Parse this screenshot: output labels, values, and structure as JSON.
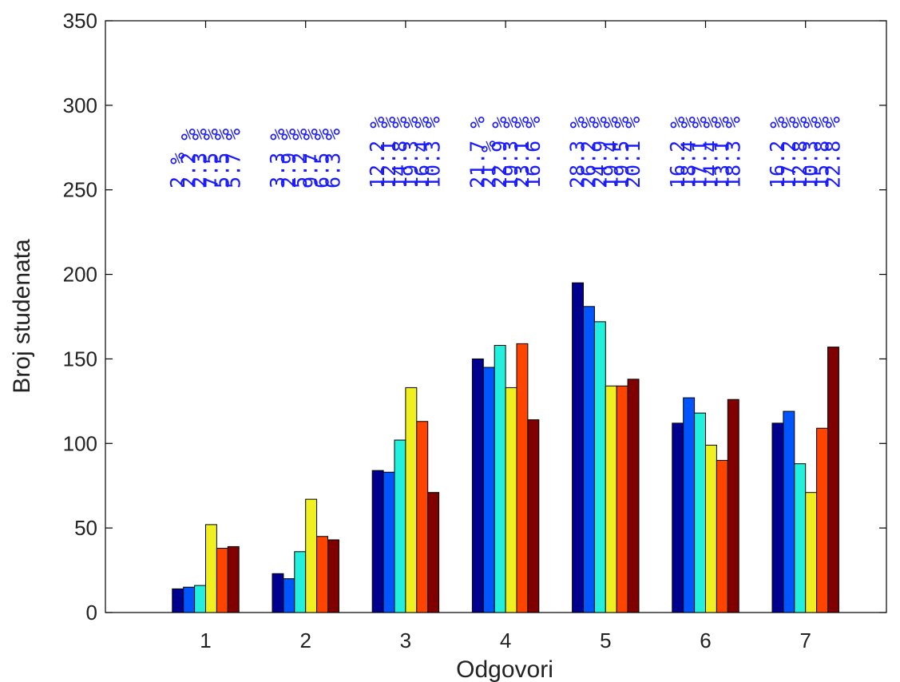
{
  "chart_data": {
    "type": "bar",
    "title": "",
    "xlabel": "Odgovori",
    "ylabel": "Broj studenata",
    "ylim": [
      0,
      350
    ],
    "yticks": [
      "0",
      "50",
      "100",
      "150",
      "200",
      "250",
      "300",
      "350"
    ],
    "categories": [
      "1",
      "2",
      "3",
      "4",
      "5",
      "6",
      "7"
    ],
    "grid": false,
    "legend": "none",
    "series_colors": [
      "#00008f",
      "#0055ff",
      "#22f0dc",
      "#f0f020",
      "#ff4400",
      "#800000"
    ],
    "series": [
      {
        "values": [
          14,
          23,
          84,
          150,
          195,
          112,
          112
        ]
      },
      {
        "values": [
          15,
          20,
          83,
          145,
          181,
          127,
          119
        ]
      },
      {
        "values": [
          16,
          36,
          102,
          158,
          172,
          118,
          88
        ]
      },
      {
        "values": [
          52,
          67,
          133,
          133,
          134,
          99,
          71
        ]
      },
      {
        "values": [
          38,
          45,
          113,
          159,
          134,
          90,
          109
        ]
      },
      {
        "values": [
          39,
          43,
          71,
          114,
          138,
          126,
          157
        ]
      }
    ],
    "percent_labels": [
      [
        "2 %",
        "2.2 %",
        "2.3 %",
        "7.5 %",
        "5.5 %",
        "5.7 %"
      ],
      [
        "3.3 %",
        "2.9 %",
        "5.2 %",
        "9.7 %",
        "6.5 %",
        "6.3 %"
      ],
      [
        "12.2 %",
        "12.1 %",
        "14.8 %",
        "19.3 %",
        "16.4 %",
        "10.3 %"
      ],
      [
        "21.7 %",
        "21 %",
        "22.9 %",
        "19.3 %",
        "23.1 %",
        "16.6 %"
      ],
      [
        "28.3 %",
        "26.2 %",
        "24.9 %",
        "19.4 %",
        "19.5 %",
        "20.1 %"
      ],
      [
        "16.2 %",
        "18.4 %",
        "17.1 %",
        "14.4 %",
        "13.1 %",
        "18.3 %"
      ],
      [
        "16.2 %",
        "17.2 %",
        "12.8 %",
        "10.3 %",
        "15.8 %",
        "22.8 %"
      ]
    ]
  }
}
